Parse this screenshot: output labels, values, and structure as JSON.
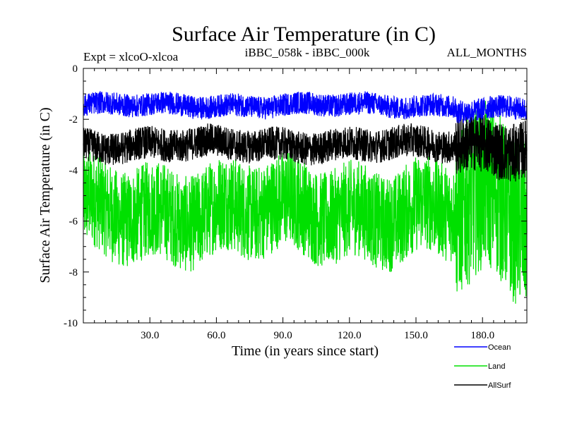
{
  "header": {
    "experiment": "Expt = xlcoO-xlcoa",
    "comparison": "iBBC_058k - iBBC_000k",
    "period": "ALL_MONTHS"
  },
  "chart_data": {
    "type": "line",
    "title": "Surface Air Temperature (in C)",
    "xlabel": "Time (in years since start)",
    "ylabel": "Surface Air Temperature (in C)",
    "xlim": [
      0,
      200
    ],
    "ylim": [
      -10,
      0
    ],
    "x_ticks": [
      30,
      60,
      90,
      120,
      150,
      180
    ],
    "x_tick_labels": [
      "30.0",
      "60.0",
      "90.0",
      "120.0",
      "150.0",
      "180.0"
    ],
    "y_ticks": [
      0,
      -2,
      -4,
      -6,
      -8,
      -10
    ],
    "y_tick_labels": [
      "0",
      "-2",
      "-4",
      "-6",
      "-8",
      "-10"
    ],
    "legend_position": "below-right",
    "sampling": "monthly values, approximated as mean level plus noise amplitude per segment",
    "series": [
      {
        "name": "Ocean",
        "color": "#0000ff",
        "segments": [
          {
            "x": [
              0,
              168
            ],
            "mean": -1.45,
            "amplitude": 0.45
          },
          {
            "x": [
              168,
              200
            ],
            "mean": -1.6,
            "amplitude": 0.45
          }
        ]
      },
      {
        "name": "Land",
        "color": "#00e000",
        "segments": [
          {
            "x": [
              0,
              168
            ],
            "mean": -5.6,
            "amplitude": 1.9
          },
          {
            "x": [
              168,
              200
            ],
            "mean": -5.5,
            "amplitude": 3.3
          }
        ]
      },
      {
        "name": "AllSurf",
        "color": "#000000",
        "segments": [
          {
            "x": [
              0,
              168
            ],
            "mean": -3.0,
            "amplitude": 0.65
          },
          {
            "x": [
              168,
              200
            ],
            "mean": -3.0,
            "amplitude": 1.15
          }
        ]
      }
    ]
  }
}
